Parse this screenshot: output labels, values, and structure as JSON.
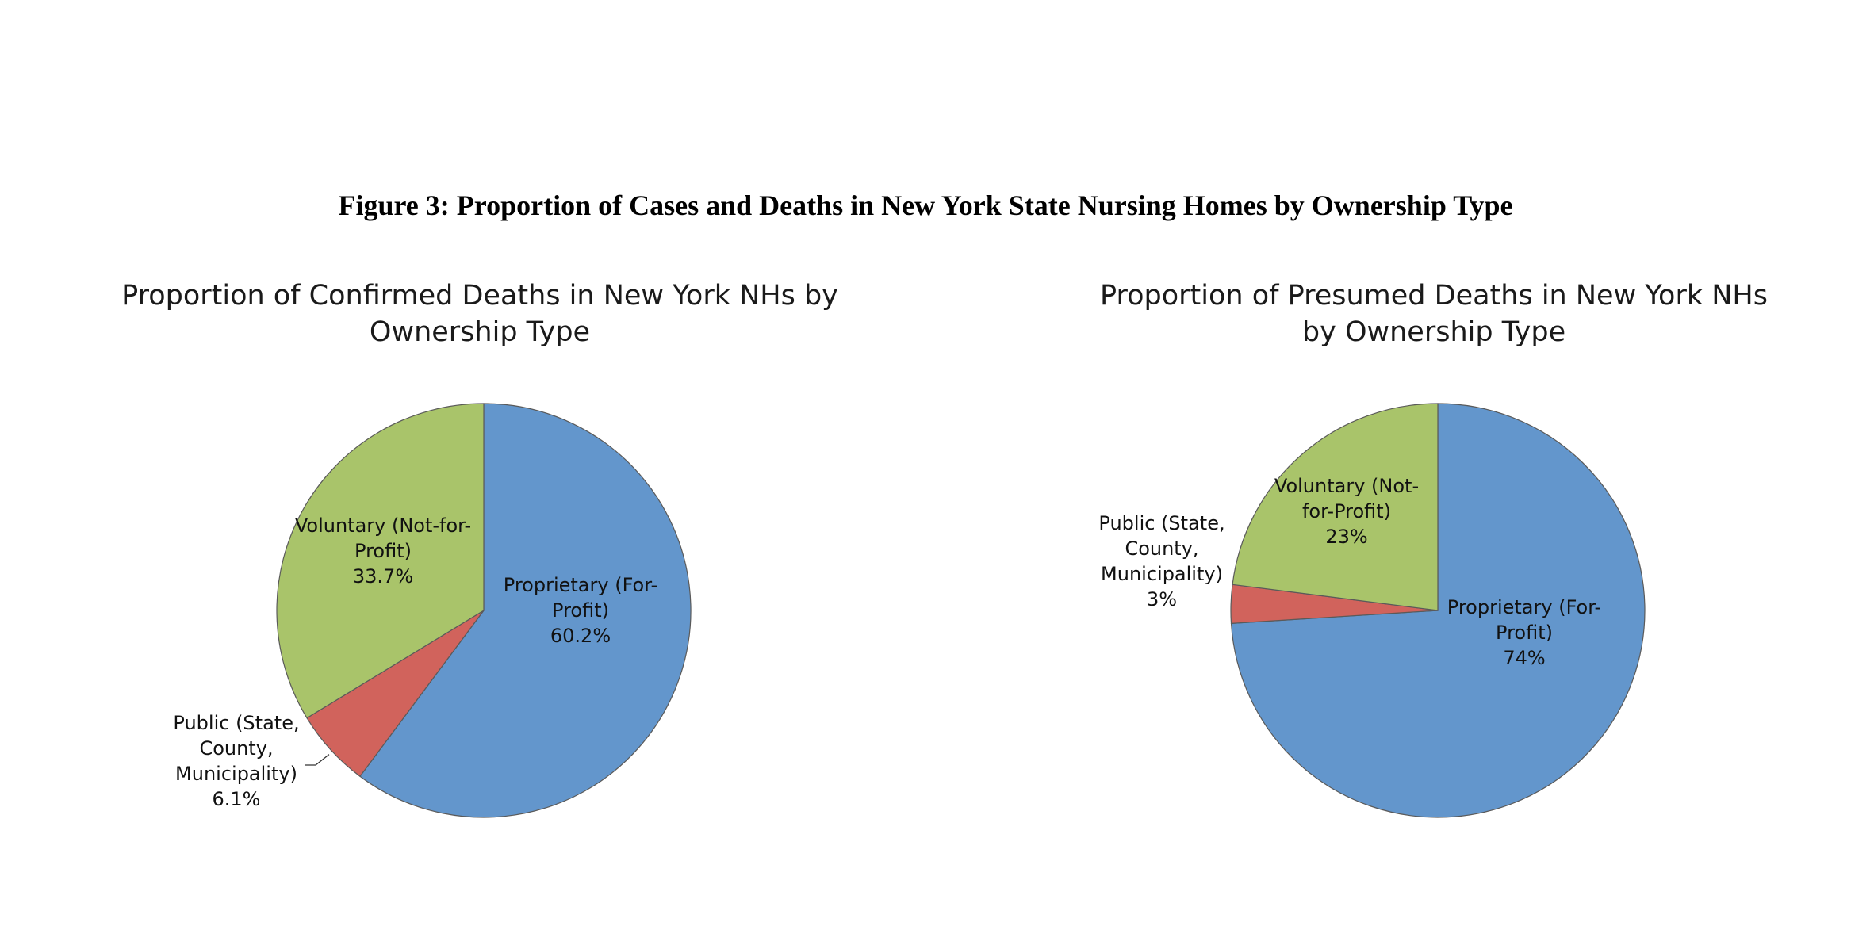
{
  "figure_title": "Figure 3: Proportion of Cases and Deaths in New York State Nursing Homes by Ownership Type",
  "colors": {
    "proprietary": "#6396CC",
    "public": "#D1635C",
    "voluntary": "#A9C46A"
  },
  "chart_data": [
    {
      "type": "pie",
      "title": [
        "Proportion of Confirmed Deaths in New York NHs by",
        "Ownership Type"
      ],
      "slices": [
        {
          "key": "proprietary",
          "label": [
            "Proprietary (For-",
            "Profit)"
          ],
          "pct_label": "60.2%",
          "value": 60.2
        },
        {
          "key": "public",
          "label": [
            "Public (State,",
            "County,",
            "Municipality)"
          ],
          "pct_label": "6.1%",
          "value": 6.1
        },
        {
          "key": "voluntary",
          "label": [
            "Voluntary (Not-for-",
            "Profit)"
          ],
          "pct_label": "33.7%",
          "value": 33.7
        }
      ]
    },
    {
      "type": "pie",
      "title": [
        "Proportion of Presumed Deaths in New York NHs",
        "by Ownership Type"
      ],
      "slices": [
        {
          "key": "proprietary",
          "label": [
            "Proprietary (For-",
            "Profit)"
          ],
          "pct_label": "74%",
          "value": 74
        },
        {
          "key": "public",
          "label": [
            "Public (State,",
            "County,",
            "Municipality)"
          ],
          "pct_label": "3%",
          "value": 3
        },
        {
          "key": "voluntary",
          "label": [
            "Voluntary (Not-",
            "for-Profit)"
          ],
          "pct_label": "23%",
          "value": 23
        }
      ]
    }
  ]
}
